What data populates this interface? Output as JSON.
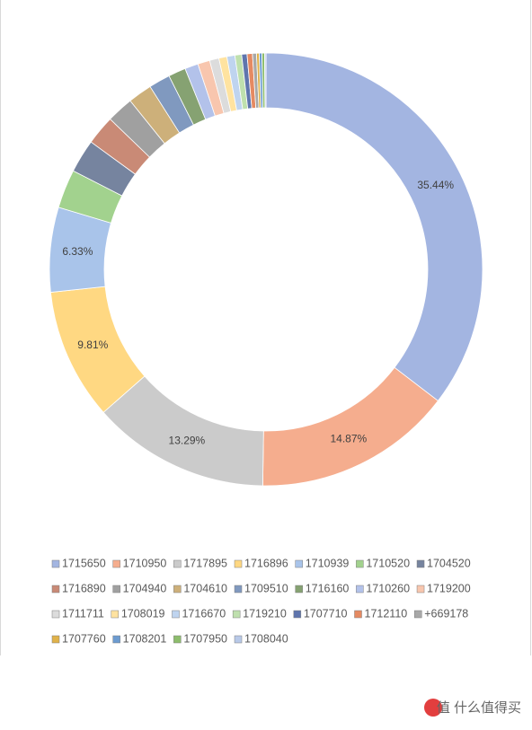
{
  "chart_data": {
    "type": "donut",
    "categories": [
      "1715650",
      "1710950",
      "1717895",
      "1716896",
      "1710939",
      "1710520",
      "1704520",
      "1716890",
      "1704940",
      "1704610",
      "1709510",
      "1716160",
      "1710260",
      "1719200",
      "1711711",
      "1708019",
      "1716670",
      "1719210",
      "1707710",
      "1712110",
      "+669178",
      "1707760",
      "1708201",
      "1707950",
      "1708040"
    ],
    "values": [
      35.44,
      14.87,
      13.29,
      9.81,
      6.33,
      2.9,
      2.5,
      2.2,
      2.0,
      1.8,
      1.6,
      1.3,
      1.0,
      0.9,
      0.7,
      0.6,
      0.6,
      0.5,
      0.4,
      0.4,
      0.3,
      0.2,
      0.2,
      0.2,
      0.1
    ],
    "value_labels": [
      "35.44%",
      "14.87%",
      "13.29%",
      "9.81%",
      "6.33%",
      null,
      null,
      null,
      null,
      null,
      null,
      null,
      null,
      null,
      null,
      null,
      null,
      null,
      null,
      null,
      null,
      null,
      null,
      null,
      null
    ],
    "colors": [
      "#a3b5e1",
      "#f5ad8e",
      "#cbcbcb",
      "#ffd882",
      "#a9c4ea",
      "#a2d28e",
      "#76849f",
      "#c98a76",
      "#a0a0a0",
      "#cdb07a",
      "#8099bf",
      "#86a272",
      "#b3c2ea",
      "#f8c6ae",
      "#dcdcdc",
      "#ffe3a0",
      "#bfd4ef",
      "#bfe0ae",
      "#5f75ad",
      "#e58a62",
      "#a8a8a8",
      "#e0b24a",
      "#6c9bd0",
      "#8dbd6c",
      "#b8c9e8"
    ],
    "watermark": "值 什么值得买"
  }
}
